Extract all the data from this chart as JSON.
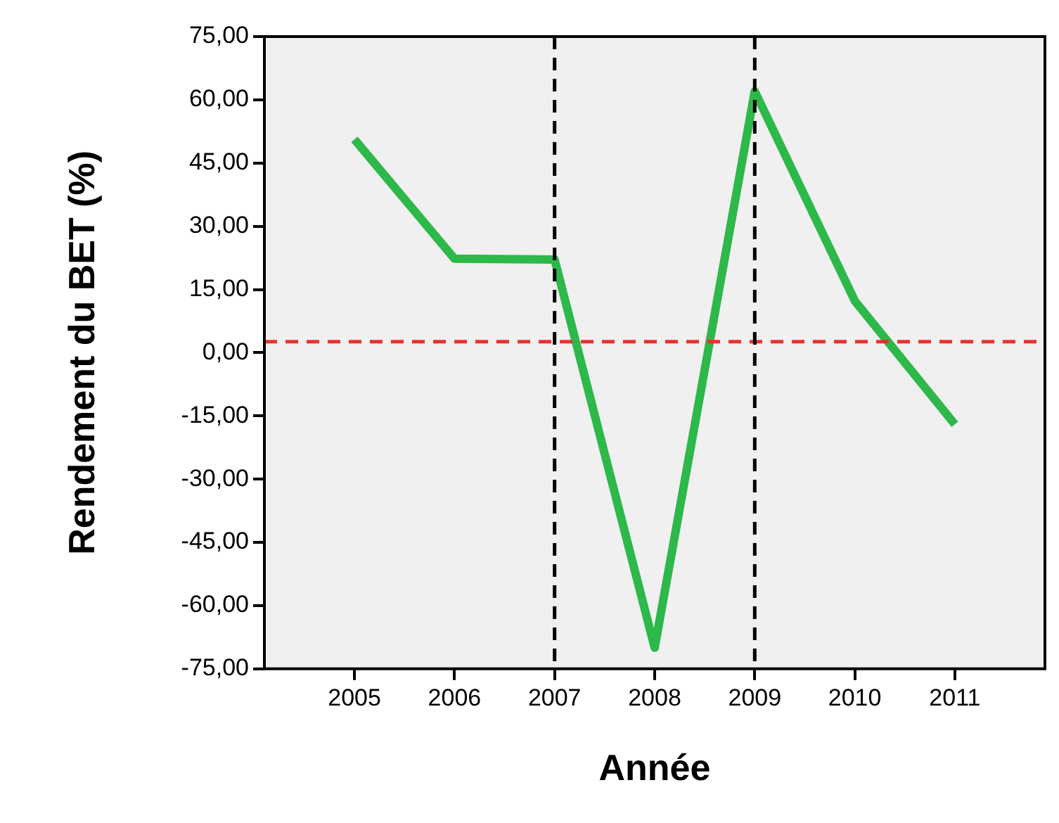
{
  "chart_data": {
    "type": "line",
    "xlabel": "Année",
    "ylabel": "Rendement du BET (%)",
    "x": [
      2005,
      2006,
      2007,
      2008,
      2009,
      2010,
      2011
    ],
    "series": [
      {
        "color": "#2db84a",
        "values": [
          50.6,
          22.3,
          22.1,
          -70,
          62,
          12.3,
          -17
        ]
      }
    ],
    "xlim": [
      2004.1,
      2011.9
    ],
    "xticks": [
      2005,
      2006,
      2007,
      2008,
      2009,
      2010,
      2011
    ],
    "ylim": [
      -75,
      75
    ],
    "yticks": [
      {
        "value": -75,
        "label": "-75,00"
      },
      {
        "value": -60,
        "label": "-60,00"
      },
      {
        "value": -45,
        "label": "-45,00"
      },
      {
        "value": -30,
        "label": "-30,00"
      },
      {
        "value": -15,
        "label": "-15,00"
      },
      {
        "value": 0,
        "label": "0,00"
      },
      {
        "value": 15,
        "label": "15,00"
      },
      {
        "value": 30,
        "label": "30,00"
      },
      {
        "value": 45,
        "label": "45,00"
      },
      {
        "value": 60,
        "label": "60,00"
      },
      {
        "value": 75,
        "label": "75,00"
      }
    ],
    "ref_lines": [
      {
        "axis": "y",
        "value": 2.6,
        "color": "#e8312f",
        "line_style": "dashed"
      },
      {
        "axis": "x",
        "value": 2007,
        "color": "#000000",
        "line_style": "dashed"
      },
      {
        "axis": "x",
        "value": 2009,
        "color": "#000000",
        "line_style": "dashed"
      }
    ],
    "grid": false,
    "legend": false,
    "marker": "none",
    "line_style": "solid"
  }
}
